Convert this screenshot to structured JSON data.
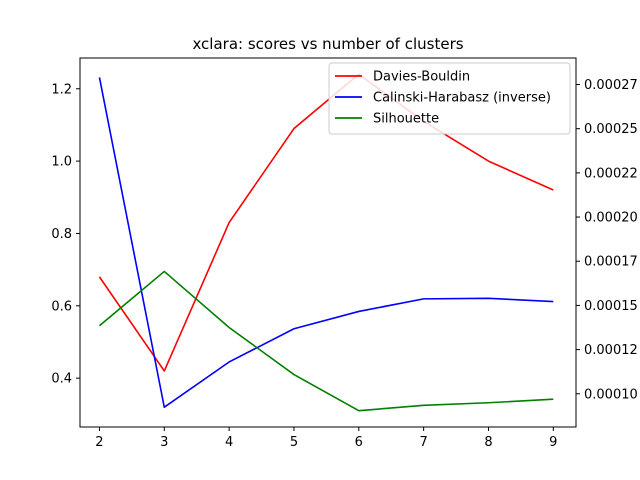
{
  "chart_data": {
    "type": "line",
    "title": "xclara: scores vs number of clusters",
    "xlabel": "",
    "ylabel_left": "",
    "ylabel_right": "",
    "x": [
      2,
      3,
      4,
      5,
      6,
      7,
      8,
      9
    ],
    "xlim": [
      1.7,
      9.35
    ],
    "ylim_left": [
      0.265,
      1.285
    ],
    "ylim_right": [
      8.12e-05,
      0.00029
    ],
    "x_ticks": [
      "2",
      "3",
      "4",
      "5",
      "6",
      "7",
      "8",
      "9"
    ],
    "y_ticks_left": [
      {
        "value": 0.4,
        "label": "0.4"
      },
      {
        "value": 0.6,
        "label": "0.6"
      },
      {
        "value": 0.8,
        "label": "0.8"
      },
      {
        "value": 1.0,
        "label": "1.0"
      },
      {
        "value": 1.2,
        "label": "1.2"
      }
    ],
    "y_ticks_right": [
      {
        "value": 0.0001,
        "label": "0.00010"
      },
      {
        "value": 0.000125,
        "label": "0.00012"
      },
      {
        "value": 0.00015,
        "label": "0.00015"
      },
      {
        "value": 0.000175,
        "label": "0.00017"
      },
      {
        "value": 0.0002,
        "label": "0.00020"
      },
      {
        "value": 0.000225,
        "label": "0.00022"
      },
      {
        "value": 0.00025,
        "label": "0.00025"
      },
      {
        "value": 0.000275,
        "label": "0.00027"
      }
    ],
    "grid": false,
    "legend_position": "top-right",
    "series": [
      {
        "name": "Davies-Bouldin",
        "color": "#ff0000",
        "axis": "left",
        "values": [
          0.68,
          0.42,
          0.83,
          1.09,
          1.24,
          1.11,
          1.0,
          0.92
        ]
      },
      {
        "name": "Calinski-Harabasz (inverse)",
        "color": "#0000ff",
        "axis": "right",
        "values": [
          0.000279,
          9.24e-05,
          0.000118,
          0.0001368,
          0.0001466,
          0.0001537,
          0.000154,
          0.0001522
        ]
      },
      {
        "name": "Silhouette",
        "color": "#008000",
        "axis": "left",
        "values": [
          0.545,
          0.695,
          0.54,
          0.41,
          0.31,
          0.325,
          0.332,
          0.342
        ]
      }
    ]
  }
}
